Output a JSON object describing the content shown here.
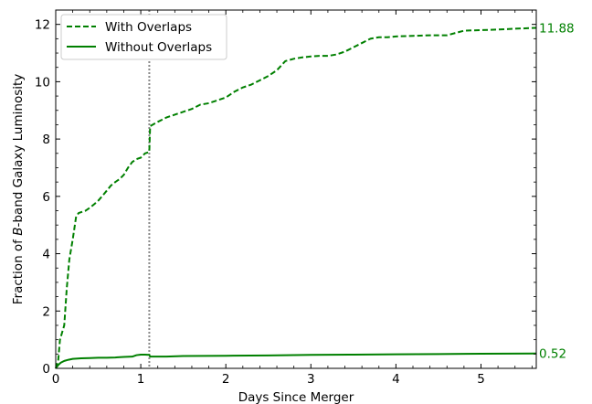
{
  "chart_data": {
    "type": "line",
    "title": "",
    "xlabel": "Days Since Merger",
    "ylabel_pre": "Fraction of ",
    "ylabel_italic": "B",
    "ylabel_post": "-band Galaxy Luminosity",
    "xlim": [
      0,
      5.65
    ],
    "ylim": [
      0,
      12.5
    ],
    "xticks": [
      0,
      1,
      2,
      3,
      4,
      5
    ],
    "yticks": [
      0,
      2,
      4,
      6,
      8,
      10,
      12
    ],
    "grid": false,
    "legend_position": "top-left",
    "vline": {
      "x": 1.1,
      "color": "#888888",
      "style": "dotted"
    },
    "series": [
      {
        "name": "With Overlaps",
        "color": "#008000",
        "style": "dashed",
        "end_label": "11.88",
        "x": [
          0,
          0.03,
          0.05,
          0.07,
          0.1,
          0.13,
          0.16,
          0.2,
          0.24,
          0.27,
          0.3,
          0.35,
          0.4,
          0.45,
          0.5,
          0.55,
          0.6,
          0.65,
          0.7,
          0.75,
          0.8,
          0.85,
          0.9,
          0.95,
          1.0,
          1.05,
          1.1,
          1.11,
          1.2,
          1.3,
          1.4,
          1.5,
          1.6,
          1.7,
          1.8,
          1.9,
          2.0,
          2.1,
          2.2,
          2.3,
          2.4,
          2.5,
          2.6,
          2.7,
          2.8,
          2.9,
          3.0,
          3.1,
          3.2,
          3.3,
          3.4,
          3.5,
          3.6,
          3.7,
          3.8,
          3.9,
          4.0,
          4.2,
          4.4,
          4.6,
          4.7,
          4.8,
          5.0,
          5.2,
          5.4,
          5.5,
          5.65
        ],
        "y": [
          0,
          0.3,
          1.0,
          1.2,
          1.5,
          2.8,
          3.8,
          4.5,
          5.3,
          5.42,
          5.45,
          5.5,
          5.6,
          5.72,
          5.85,
          6.02,
          6.2,
          6.38,
          6.5,
          6.6,
          6.75,
          7.0,
          7.2,
          7.3,
          7.35,
          7.5,
          7.55,
          8.45,
          8.6,
          8.75,
          8.85,
          8.95,
          9.05,
          9.2,
          9.25,
          9.35,
          9.45,
          9.65,
          9.8,
          9.9,
          10.05,
          10.2,
          10.4,
          10.72,
          10.8,
          10.85,
          10.88,
          10.9,
          10.9,
          10.95,
          11.05,
          11.2,
          11.35,
          11.5,
          11.55,
          11.55,
          11.58,
          11.6,
          11.62,
          11.62,
          11.7,
          11.78,
          11.8,
          11.82,
          11.85,
          11.86,
          11.88
        ]
      },
      {
        "name": "Without Overlaps",
        "color": "#008000",
        "style": "solid",
        "end_label": "0.52",
        "x": [
          0,
          0.03,
          0.06,
          0.1,
          0.15,
          0.2,
          0.3,
          0.4,
          0.5,
          0.6,
          0.7,
          0.8,
          0.9,
          0.95,
          1.0,
          1.05,
          1.1,
          1.11,
          1.3,
          1.5,
          2.0,
          2.5,
          3.0,
          3.5,
          4.0,
          4.5,
          5.0,
          5.65
        ],
        "y": [
          0,
          0.12,
          0.2,
          0.26,
          0.3,
          0.33,
          0.35,
          0.36,
          0.37,
          0.37,
          0.38,
          0.4,
          0.41,
          0.46,
          0.48,
          0.48,
          0.47,
          0.41,
          0.41,
          0.43,
          0.44,
          0.45,
          0.47,
          0.48,
          0.49,
          0.5,
          0.51,
          0.52
        ]
      }
    ]
  }
}
